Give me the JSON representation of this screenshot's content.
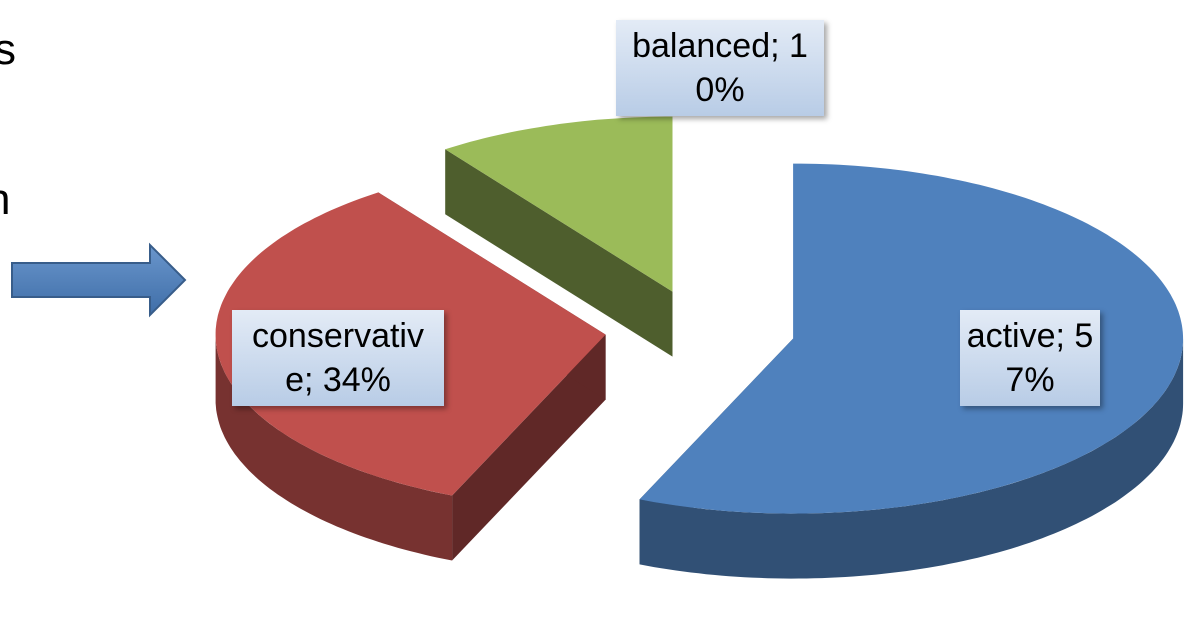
{
  "slide_text": [
    "s",
    "n"
  ],
  "chart_data": {
    "type": "pie3d",
    "values": [
      57,
      34,
      10
    ],
    "value_labels": [
      "active; 57%",
      "conservative; 34%",
      "balanced; 10%"
    ],
    "colors": [
      "#4f81bd",
      "#c0504d",
      "#9bbb59"
    ]
  }
}
